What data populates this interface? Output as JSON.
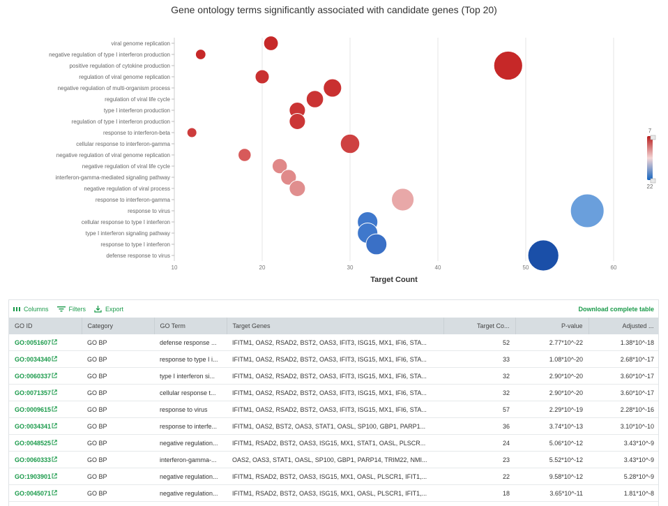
{
  "chart_data": {
    "type": "scatter",
    "title": "Gene ontology terms significantly associated with candidate genes (Top 20)",
    "xlabel": "Target Count",
    "ylabel": "",
    "xlim": [
      10,
      60
    ],
    "xticks": [
      10,
      20,
      30,
      40,
      50,
      60
    ],
    "colorbar": {
      "min_label": "7",
      "max_label": "22",
      "top_color": "#b71c1c",
      "mid_color": "#f4d6d6",
      "bottom_color": "#1565c0"
    },
    "points": [
      {
        "term": "viral genome replication",
        "x": 21,
        "size": 21,
        "color": "#c62828"
      },
      {
        "term": "negative regulation of type I interferon production",
        "x": 13,
        "size": 13,
        "color": "#c62828"
      },
      {
        "term": "positive regulation of cytokine production",
        "x": 48,
        "size": 48,
        "color": "#c62828"
      },
      {
        "term": "regulation of viral genome replication",
        "x": 20,
        "size": 20,
        "color": "#c93030"
      },
      {
        "term": "negative regulation of multi-organism process",
        "x": 28,
        "size": 28,
        "color": "#c93030"
      },
      {
        "term": "regulation of viral life cycle",
        "x": 26,
        "size": 26,
        "color": "#ca3434"
      },
      {
        "term": "type I interferon production",
        "x": 24,
        "size": 24,
        "color": "#ca3434"
      },
      {
        "term": "regulation of type I interferon production",
        "x": 24,
        "size": 24,
        "color": "#cb3636"
      },
      {
        "term": "response to interferon-beta",
        "x": 12,
        "size": 12,
        "color": "#cd3c3c"
      },
      {
        "term": "cellular response to interferon-gamma",
        "x": 30,
        "size": 30,
        "color": "#ce4141"
      },
      {
        "term": "negative regulation of viral genome replication",
        "x": 18,
        "size": 18,
        "color": "#d75a5a"
      },
      {
        "term": "negative regulation of viral life cycle",
        "x": 22,
        "size": 22,
        "color": "#e08888"
      },
      {
        "term": "interferon-gamma-mediated signaling pathway",
        "x": 23,
        "size": 23,
        "color": "#e08a8a"
      },
      {
        "term": "negative regulation of viral process",
        "x": 24,
        "size": 24,
        "color": "#e08e8e"
      },
      {
        "term": "response to interferon-gamma",
        "x": 36,
        "size": 36,
        "color": "#e8a8a8"
      },
      {
        "term": "response to virus",
        "x": 57,
        "size": 57,
        "color": "#6a9fdc"
      },
      {
        "term": "cellular response to type I interferon",
        "x": 32,
        "size": 32,
        "color": "#3f78cc"
      },
      {
        "term": "type I interferon signaling pathway",
        "x": 32,
        "size": 32,
        "color": "#3f78cc"
      },
      {
        "term": "response to type I interferon",
        "x": 33,
        "size": 33,
        "color": "#3a70c6"
      },
      {
        "term": "defense response to virus",
        "x": 52,
        "size": 52,
        "color": "#1a4fa8"
      }
    ]
  },
  "table": {
    "toolbar": {
      "columns_label": "Columns",
      "filters_label": "Filters",
      "export_label": "Export",
      "download_label": "Download complete table"
    },
    "columns": [
      "GO ID",
      "Category",
      "GO Term",
      "Target Genes",
      "Target Co...",
      "P-value",
      "Adjusted ..."
    ],
    "rows": [
      {
        "go_id": "GO:0051607",
        "category": "GO BP",
        "term": "defense response ...",
        "genes": "IFITM1, OAS2, RSAD2, BST2, OAS3, IFIT3, ISG15, MX1, IFI6, STA...",
        "count": "52",
        "pvalue": "2.77*10^-22",
        "adjusted": "1.38*10^-18"
      },
      {
        "go_id": "GO:0034340",
        "category": "GO BP",
        "term": "response to type I i...",
        "genes": "IFITM1, OAS2, RSAD2, BST2, OAS3, IFIT3, ISG15, MX1, IFI6, STA...",
        "count": "33",
        "pvalue": "1.08*10^-20",
        "adjusted": "2.68*10^-17"
      },
      {
        "go_id": "GO:0060337",
        "category": "GO BP",
        "term": "type I interferon si...",
        "genes": "IFITM1, OAS2, RSAD2, BST2, OAS3, IFIT3, ISG15, MX1, IFI6, STA...",
        "count": "32",
        "pvalue": "2.90*10^-20",
        "adjusted": "3.60*10^-17"
      },
      {
        "go_id": "GO:0071357",
        "category": "GO BP",
        "term": "cellular response t...",
        "genes": "IFITM1, OAS2, RSAD2, BST2, OAS3, IFIT3, ISG15, MX1, IFI6, STA...",
        "count": "32",
        "pvalue": "2.90*10^-20",
        "adjusted": "3.60*10^-17"
      },
      {
        "go_id": "GO:0009615",
        "category": "GO BP",
        "term": "response to virus",
        "genes": "IFITM1, OAS2, RSAD2, BST2, OAS3, IFIT3, ISG15, MX1, IFI6, STA...",
        "count": "57",
        "pvalue": "2.29*10^-19",
        "adjusted": "2.28*10^-16"
      },
      {
        "go_id": "GO:0034341",
        "category": "GO BP",
        "term": "response to interfe...",
        "genes": "IFITM1, OAS2, BST2, OAS3, STAT1, OASL, SP100, GBP1, PARP1...",
        "count": "36",
        "pvalue": "3.74*10^-13",
        "adjusted": "3.10*10^-10"
      },
      {
        "go_id": "GO:0048525",
        "category": "GO BP",
        "term": "negative regulation...",
        "genes": "IFITM1, RSAD2, BST2, OAS3, ISG15, MX1, STAT1, OASL, PLSCR...",
        "count": "24",
        "pvalue": "5.06*10^-12",
        "adjusted": "3.43*10^-9"
      },
      {
        "go_id": "GO:0060333",
        "category": "GO BP",
        "term": "interferon-gamma-...",
        "genes": "OAS2, OAS3, STAT1, OASL, SP100, GBP1, PARP14, TRIM22, NMI...",
        "count": "23",
        "pvalue": "5.52*10^-12",
        "adjusted": "3.43*10^-9"
      },
      {
        "go_id": "GO:1903901",
        "category": "GO BP",
        "term": "negative regulation...",
        "genes": "IFITM1, RSAD2, BST2, OAS3, ISG15, MX1, OASL, PLSCR1, IFIT1,...",
        "count": "22",
        "pvalue": "9.58*10^-12",
        "adjusted": "5.28*10^-9"
      },
      {
        "go_id": "GO:0045071",
        "category": "GO BP",
        "term": "negative regulation...",
        "genes": "IFITM1, RSAD2, BST2, OAS3, ISG15, MX1, OASL, PLSCR1, IFIT1,...",
        "count": "18",
        "pvalue": "3.65*10^-11",
        "adjusted": "1.81*10^-8"
      }
    ]
  }
}
